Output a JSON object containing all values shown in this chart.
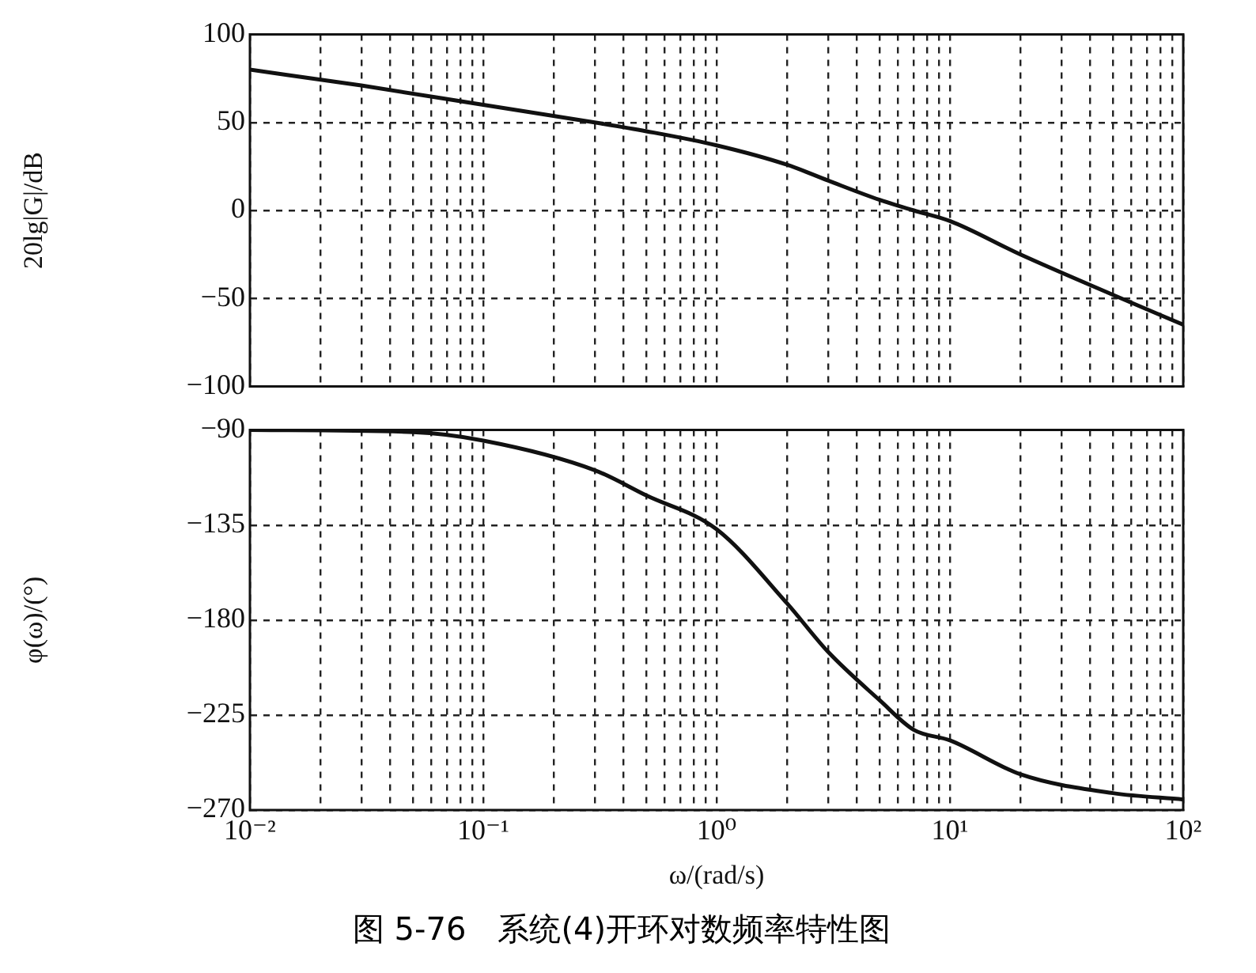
{
  "chart_data": [
    {
      "type": "line",
      "ylabel": "20lg|G|/dB",
      "x": [
        0.01,
        0.03,
        0.1,
        0.3,
        0.5,
        1,
        2,
        3,
        5,
        7,
        10,
        20,
        50,
        100
      ],
      "series": [
        {
          "color": "#111111",
          "values": [
            80,
            71,
            60,
            50,
            45,
            37,
            26,
            17,
            6,
            0,
            -6,
            -25,
            -48,
            -65
          ]
        }
      ],
      "log": "x",
      "xlim": [
        0.01,
        100
      ],
      "xticks": [
        {
          "value": 0.01,
          "label": null
        },
        {
          "value": 0.02,
          "label": null
        },
        {
          "value": 0.03,
          "label": null
        },
        {
          "value": 0.04,
          "label": null
        },
        {
          "value": 0.05,
          "label": null
        },
        {
          "value": 0.06,
          "label": null
        },
        {
          "value": 0.07,
          "label": null
        },
        {
          "value": 0.08,
          "label": null
        },
        {
          "value": 0.09,
          "label": null
        },
        {
          "value": 0.1,
          "label": null
        },
        {
          "value": 0.2,
          "label": null
        },
        {
          "value": 0.3,
          "label": null
        },
        {
          "value": 0.4,
          "label": null
        },
        {
          "value": 0.5,
          "label": null
        },
        {
          "value": 0.6,
          "label": null
        },
        {
          "value": 0.7,
          "label": null
        },
        {
          "value": 0.8,
          "label": null
        },
        {
          "value": 0.9,
          "label": null
        },
        {
          "value": 1,
          "label": null
        },
        {
          "value": 2,
          "label": null
        },
        {
          "value": 3,
          "label": null
        },
        {
          "value": 4,
          "label": null
        },
        {
          "value": 5,
          "label": null
        },
        {
          "value": 6,
          "label": null
        },
        {
          "value": 7,
          "label": null
        },
        {
          "value": 8,
          "label": null
        },
        {
          "value": 9,
          "label": null
        },
        {
          "value": 10,
          "label": null
        },
        {
          "value": 20,
          "label": null
        },
        {
          "value": 30,
          "label": null
        },
        {
          "value": 40,
          "label": null
        },
        {
          "value": 50,
          "label": null
        },
        {
          "value": 60,
          "label": null
        },
        {
          "value": 70,
          "label": null
        },
        {
          "value": 80,
          "label": null
        },
        {
          "value": 90,
          "label": null
        },
        {
          "value": 100,
          "label": null
        }
      ],
      "ylim": [
        -100,
        100
      ],
      "yticks": [
        -100,
        -50,
        0,
        50,
        100
      ],
      "grid": true,
      "tick_labels": "y",
      "legend": false,
      "marker": "none",
      "line_style": "solid"
    },
    {
      "type": "line",
      "xlabel": "ω/(rad/s)",
      "ylabel": "φ(ω)/(°)",
      "x": [
        0.01,
        0.05,
        0.1,
        0.3,
        0.5,
        1,
        2,
        3,
        5,
        7,
        10,
        20,
        50,
        100
      ],
      "series": [
        {
          "color": "#111111",
          "values": [
            -90,
            -91,
            -95,
            -109,
            -121,
            -137,
            -172,
            -195,
            -218,
            -232,
            -237,
            -253,
            -262,
            -265
          ]
        }
      ],
      "log": "x",
      "xlim": [
        0.01,
        100
      ],
      "xticks": [
        {
          "value": 0.01,
          "label": "10⁻²"
        },
        {
          "value": 0.02,
          "label": null
        },
        {
          "value": 0.03,
          "label": null
        },
        {
          "value": 0.04,
          "label": null
        },
        {
          "value": 0.05,
          "label": null
        },
        {
          "value": 0.06,
          "label": null
        },
        {
          "value": 0.07,
          "label": null
        },
        {
          "value": 0.08,
          "label": null
        },
        {
          "value": 0.09,
          "label": null
        },
        {
          "value": 0.1,
          "label": "10⁻¹"
        },
        {
          "value": 0.2,
          "label": null
        },
        {
          "value": 0.3,
          "label": null
        },
        {
          "value": 0.4,
          "label": null
        },
        {
          "value": 0.5,
          "label": null
        },
        {
          "value": 0.6,
          "label": null
        },
        {
          "value": 0.7,
          "label": null
        },
        {
          "value": 0.8,
          "label": null
        },
        {
          "value": 0.9,
          "label": null
        },
        {
          "value": 1,
          "label": "10⁰"
        },
        {
          "value": 2,
          "label": null
        },
        {
          "value": 3,
          "label": null
        },
        {
          "value": 4,
          "label": null
        },
        {
          "value": 5,
          "label": null
        },
        {
          "value": 6,
          "label": null
        },
        {
          "value": 7,
          "label": null
        },
        {
          "value": 8,
          "label": null
        },
        {
          "value": 9,
          "label": null
        },
        {
          "value": 10,
          "label": "10¹"
        },
        {
          "value": 20,
          "label": null
        },
        {
          "value": 30,
          "label": null
        },
        {
          "value": 40,
          "label": null
        },
        {
          "value": 50,
          "label": null
        },
        {
          "value": 60,
          "label": null
        },
        {
          "value": 70,
          "label": null
        },
        {
          "value": 80,
          "label": null
        },
        {
          "value": 90,
          "label": null
        },
        {
          "value": 100,
          "label": "10²"
        }
      ],
      "ylim": [
        -270,
        -90
      ],
      "yticks": [
        -270,
        -225,
        -180,
        -135,
        -90
      ],
      "grid": true,
      "legend": false,
      "marker": "none",
      "line_style": "solid",
      "annotations": [
        "图 5-76　系统(4)开环对数频率特性图"
      ]
    }
  ]
}
